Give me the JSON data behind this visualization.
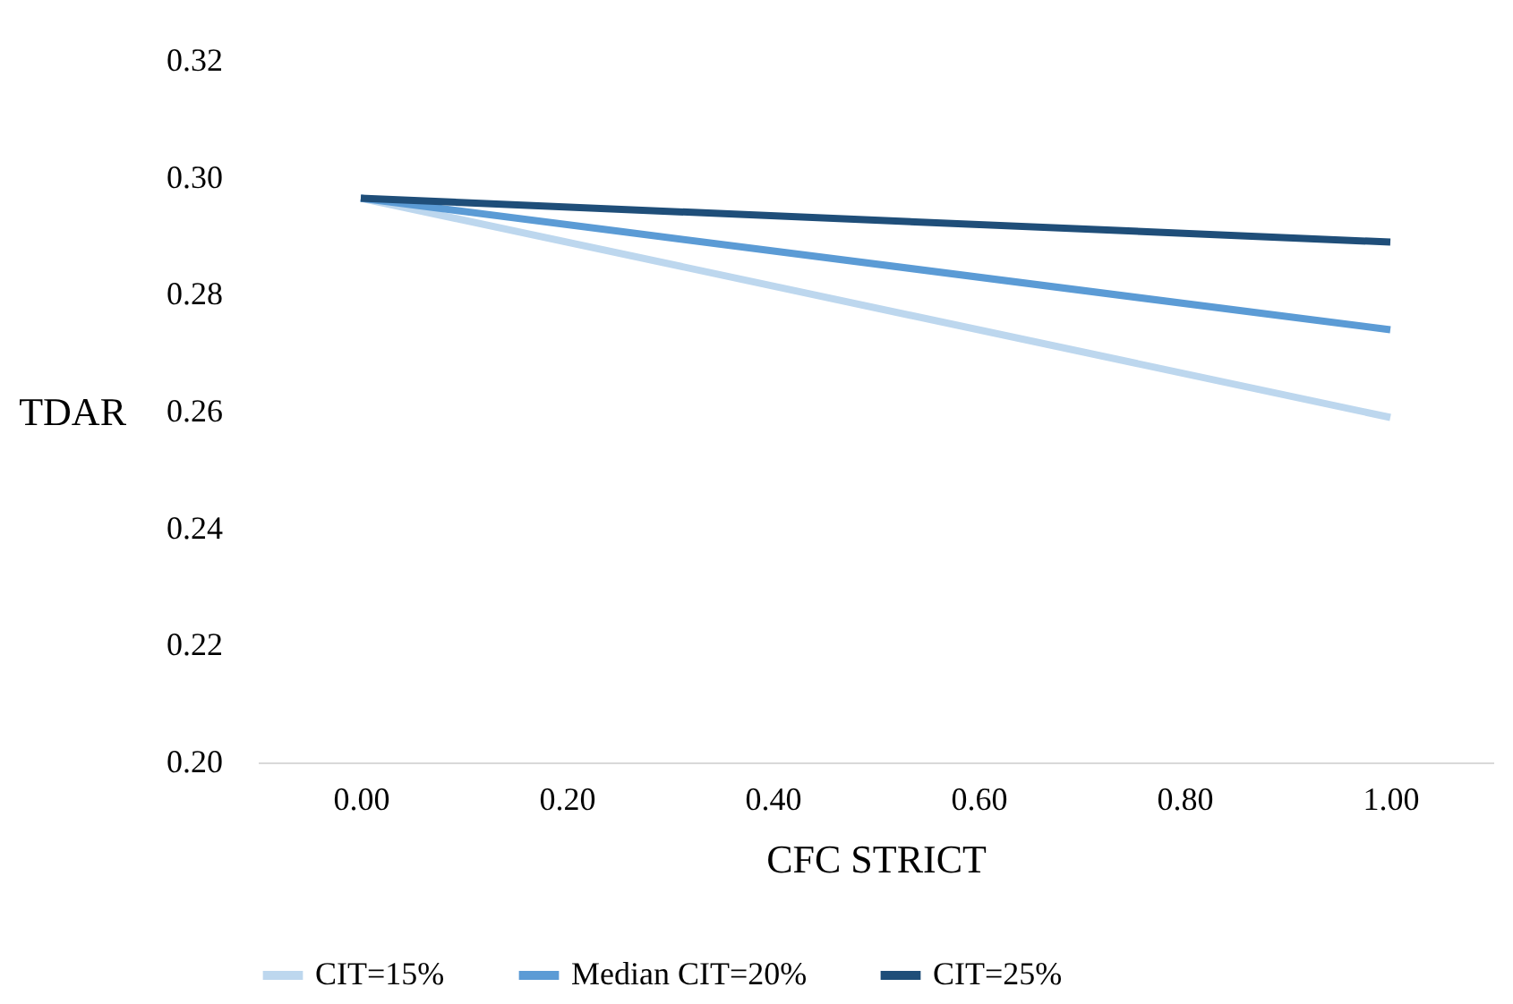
{
  "chart_data": {
    "type": "line",
    "xlabel": "CFC STRICT",
    "ylabel": "TDAR",
    "x": [
      0,
      1
    ],
    "series": [
      {
        "name": "CIT=15%",
        "color": "#bdd7ee",
        "values": [
          0.2965,
          0.259
        ]
      },
      {
        "name": "Median CIT=20%",
        "color": "#5b9bd5",
        "values": [
          0.2965,
          0.274
        ]
      },
      {
        "name": "CIT=25%",
        "color": "#1f4e79",
        "values": [
          0.2965,
          0.289
        ]
      }
    ],
    "xlim": [
      -0.1,
      1.1
    ],
    "xticks": [
      {
        "value": 0,
        "label": "0.00"
      },
      {
        "value": 0.2,
        "label": "0.20"
      },
      {
        "value": 0.4,
        "label": "0.40"
      },
      {
        "value": 0.6,
        "label": "0.60"
      },
      {
        "value": 0.8,
        "label": "0.80"
      },
      {
        "value": 1,
        "label": "1.00"
      }
    ],
    "ylim": [
      0.2,
      0.32
    ],
    "yticks": [
      {
        "value": 0.2,
        "label": "0.20"
      },
      {
        "value": 0.22,
        "label": "0.22"
      },
      {
        "value": 0.24,
        "label": "0.24"
      },
      {
        "value": 0.26,
        "label": "0.26"
      },
      {
        "value": 0.28,
        "label": "0.28"
      },
      {
        "value": 0.3,
        "label": "0.30"
      },
      {
        "value": 0.32,
        "label": "0.32"
      }
    ],
    "grid": false,
    "legend": "bottom",
    "marker": "none",
    "line_style": "solid"
  }
}
